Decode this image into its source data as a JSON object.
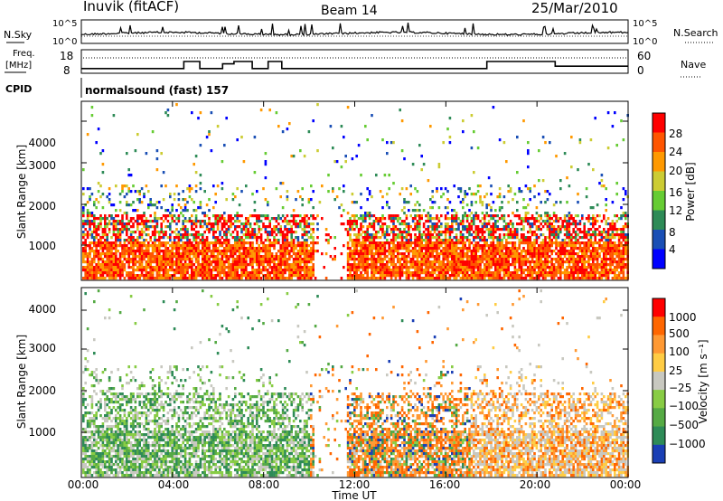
{
  "header": {
    "station": "Inuvik (fitACF)",
    "beam": "Beam 14",
    "date": "25/Mar/2010"
  },
  "top_panel": {
    "left_label": "N.Sky",
    "right_label": "N.Search",
    "left_ticks": [
      "10^5",
      "10^0"
    ],
    "right_ticks": [
      "10^5",
      "10^0"
    ]
  },
  "freq_panel": {
    "left_label_line1": "Freq.",
    "left_label_line2": "[MHz]",
    "right_label": "Nave",
    "left_ticks": [
      "18",
      "8"
    ],
    "right_ticks": [
      "60",
      "0"
    ]
  },
  "cpid": {
    "label": "CPID",
    "mode": "normalsound (fast) 157"
  },
  "x_axis": {
    "label": "Time UT",
    "ticks": [
      "00:00",
      "04:00",
      "08:00",
      "12:00",
      "16:00",
      "20:00",
      "00:00"
    ]
  },
  "power_panel": {
    "ylabel": "Slant Range [km]",
    "yticks": [
      "4000",
      "3000",
      "2000",
      "1000"
    ],
    "colorbar_label": "Power [dB]",
    "colorbar_ticks": [
      "28",
      "24",
      "20",
      "16",
      "12",
      "8",
      "4"
    ],
    "colors": [
      "#0000ff",
      "#1a4fb5",
      "#2e8b57",
      "#66cc33",
      "#cccc33",
      "#ff9900",
      "#ff5500",
      "#ff0000"
    ]
  },
  "velocity_panel": {
    "ylabel": "Slant Range [km]",
    "yticks": [
      "4000",
      "3000",
      "2000",
      "1000"
    ],
    "colorbar_label": "Velocity [m s⁻¹]",
    "colorbar_ticks": [
      "1000",
      "500",
      "100",
      "25",
      "−25",
      "−100",
      "−500",
      "−1000"
    ],
    "colors": [
      "#1a3fb5",
      "#2e8b57",
      "#55aa44",
      "#88cc44",
      "#c8c8c0",
      "#ffcc44",
      "#ff9933",
      "#ff6600",
      "#ff0000"
    ]
  },
  "chart_data": [
    {
      "type": "line",
      "title": "N.Sky / N.Search",
      "x_range_hours": [
        0,
        24
      ],
      "y_scale": "log",
      "ylim": [
        1,
        100000
      ]
    },
    {
      "type": "line",
      "title": "Freq. [MHz] / Nave",
      "x": [
        0,
        4.5,
        4.5,
        5.2,
        5.2,
        6.2,
        6.2,
        6.7,
        6.7,
        7.5,
        7.5,
        8.2,
        8.2,
        8.8,
        8.8,
        17.8,
        17.8,
        20.8,
        20.8,
        24
      ],
      "freq_mhz": [
        10,
        10,
        13,
        13,
        10,
        10,
        12,
        12,
        13,
        13,
        10,
        10,
        13,
        13,
        10,
        10,
        13,
        13,
        11,
        11
      ],
      "nave_level": 27,
      "ylim_freq": [
        8,
        18
      ],
      "ylim_nave": [
        0,
        60
      ]
    },
    {
      "type": "heatmap",
      "title": "Power [dB]",
      "xlim_hours": [
        0,
        24
      ],
      "ylim_km": [
        180,
        4500
      ],
      "color_levels": [
        4,
        8,
        12,
        16,
        20,
        24,
        28
      ]
    },
    {
      "type": "heatmap",
      "title": "Velocity [m s-1]",
      "xlim_hours": [
        0,
        24
      ],
      "ylim_km": [
        180,
        4500
      ],
      "color_levels": [
        -1000,
        -500,
        -100,
        -25,
        25,
        100,
        500,
        1000
      ]
    }
  ]
}
